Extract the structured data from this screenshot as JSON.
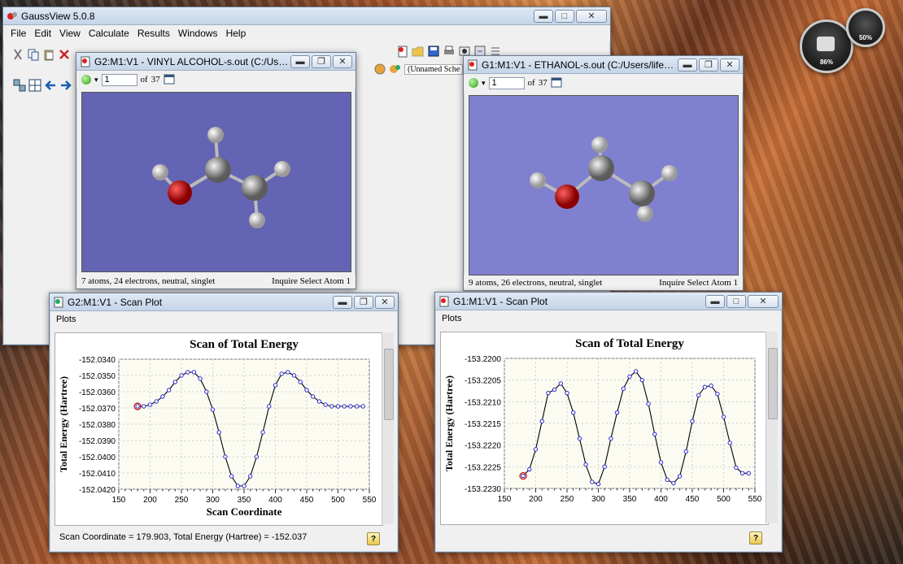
{
  "main_window": {
    "title": "GaussView 5.0.8",
    "menus": [
      "File",
      "Edit",
      "View",
      "Calculate",
      "Results",
      "Windows",
      "Help"
    ],
    "unnamed_label": "(Unnamed Sche"
  },
  "mol_windows": [
    {
      "title": "G2:M1:V1 - VINYL ALCOHOL-s.out (C:/Users...",
      "frame": "1",
      "of_label": "of",
      "total": "37",
      "status": "7 atoms, 24 electrons, neutral, singlet",
      "mode": "Inquire Select Atom 1",
      "bg": "#6464b4"
    },
    {
      "title": "G1:M1:V1 - ETHANOL-s.out (C:/Users/life/D...",
      "frame": "1",
      "of_label": "of",
      "total": "37",
      "status": "9 atoms, 26 electrons, neutral, singlet",
      "mode": "Inquire Select Atom 1",
      "bg": "#8080d0"
    }
  ],
  "scan_windows": [
    {
      "title": "G2:M1:V1 - Scan Plot",
      "menu": "Plots",
      "footer": "Scan Coordinate = 179.903, Total Energy (Hartree) = -152.037"
    },
    {
      "title": "G1:M1:V1 - Scan Plot",
      "menu": "Plots",
      "footer": ""
    }
  ],
  "gauges": [
    {
      "value": "86%"
    },
    {
      "value": "50%"
    }
  ],
  "colors": {
    "curve": "#000000",
    "points": "#2a2ad0",
    "highlight": "#d02020",
    "plot_bg": "#fbfbf2"
  },
  "chart_data": [
    {
      "type": "line",
      "title": "Scan of Total Energy",
      "xlabel": "Scan Coordinate",
      "ylabel": "Total Energy (Hartree)",
      "xlim": [
        150,
        550
      ],
      "ylim": [
        -152.042,
        -152.034
      ],
      "xticks": [
        150,
        200,
        250,
        300,
        350,
        400,
        450,
        500,
        550
      ],
      "yticks": [
        "-152.0340",
        "-152.0350",
        "-152.0360",
        "-152.0370",
        "-152.0380",
        "-152.0390",
        "-152.0400",
        "-152.0410",
        "-152.0420"
      ],
      "grid": true,
      "highlight_index": 0,
      "series": [
        {
          "x": [
            180,
            190,
            200,
            210,
            220,
            230,
            240,
            250,
            260,
            270,
            280,
            290,
            300,
            310,
            320,
            330,
            340,
            350,
            360,
            370,
            380,
            390,
            400,
            410,
            420,
            430,
            440,
            450,
            460,
            470,
            480,
            490,
            500,
            510,
            520,
            530,
            540
          ],
          "y": [
            -152.0369,
            -152.0369,
            -152.0368,
            -152.0366,
            -152.0363,
            -152.0359,
            -152.0354,
            -152.035,
            -152.0348,
            -152.0348,
            -152.0352,
            -152.036,
            -152.0371,
            -152.0385,
            -152.04,
            -152.0412,
            -152.0418,
            -152.0418,
            -152.0412,
            -152.04,
            -152.0385,
            -152.0369,
            -152.0356,
            -152.0349,
            -152.0348,
            -152.035,
            -152.0354,
            -152.0359,
            -152.0363,
            -152.0366,
            -152.0368,
            -152.0369,
            -152.0369,
            -152.0369,
            -152.0369,
            -152.0369,
            -152.0369
          ]
        }
      ]
    },
    {
      "type": "line",
      "title": "Scan of Total Energy",
      "xlabel": "",
      "ylabel": "Total Energy (Hartree)",
      "xlim": [
        150,
        550
      ],
      "ylim": [
        -153.223,
        -153.22
      ],
      "xticks": [
        150,
        200,
        250,
        300,
        350,
        400,
        450,
        500,
        550
      ],
      "yticks": [
        "-153.2200",
        "-153.2205",
        "-153.2210",
        "-153.2215",
        "-153.2220",
        "-153.2225",
        "-153.2230"
      ],
      "grid": true,
      "highlight_index": 0,
      "series": [
        {
          "x": [
            180,
            190,
            200,
            210,
            220,
            230,
            240,
            250,
            260,
            270,
            280,
            290,
            300,
            310,
            320,
            330,
            340,
            350,
            360,
            370,
            380,
            390,
            400,
            410,
            420,
            430,
            440,
            450,
            460,
            470,
            480,
            490,
            500,
            510,
            520,
            530,
            540
          ],
          "y": [
            -153.22271,
            -153.22256,
            -153.2221,
            -153.22145,
            -153.2208,
            -153.22072,
            -153.22058,
            -153.2208,
            -153.22125,
            -153.22185,
            -153.22245,
            -153.22285,
            -153.2229,
            -153.2225,
            -153.22185,
            -153.22125,
            -153.2207,
            -153.22042,
            -153.2203,
            -153.2205,
            -153.22105,
            -153.22175,
            -153.2224,
            -153.2228,
            -153.22288,
            -153.22272,
            -153.22215,
            -153.22145,
            -153.22085,
            -153.22066,
            -153.22063,
            -153.22082,
            -153.22135,
            -153.22195,
            -153.22252,
            -153.22265,
            -153.22265
          ]
        }
      ]
    }
  ]
}
